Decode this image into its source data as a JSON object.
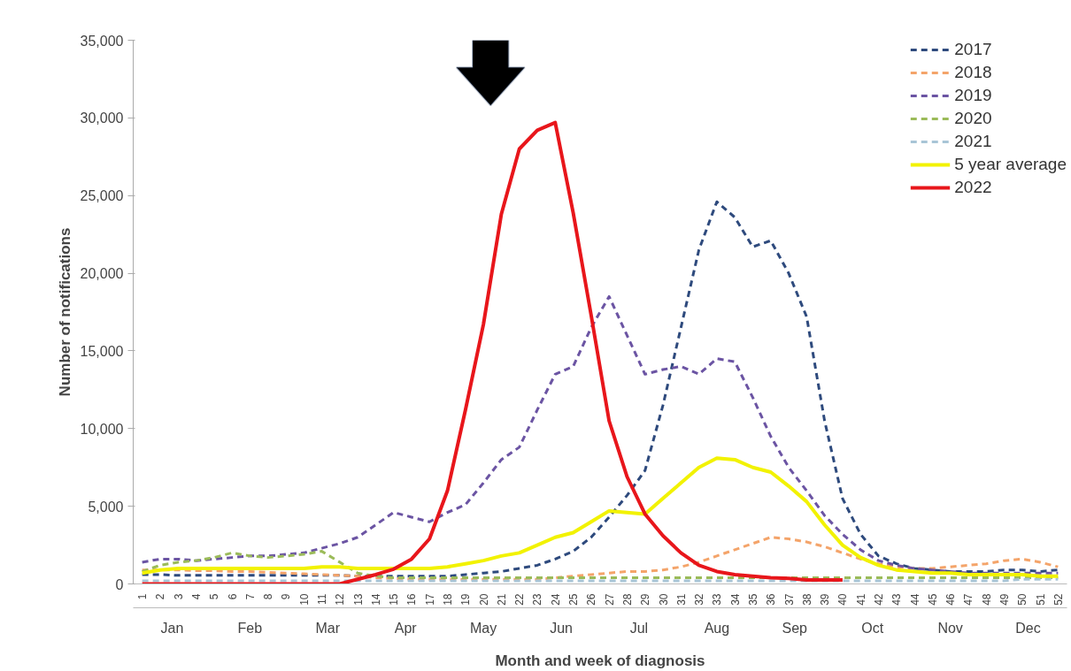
{
  "chart_data": {
    "type": "line",
    "xlabel": "Month and week of diagnosis",
    "ylabel": "Number of notifications",
    "categories": [
      "1",
      "2",
      "3",
      "4",
      "5",
      "6",
      "7",
      "8",
      "9",
      "10",
      "11",
      "12",
      "13",
      "14",
      "15",
      "16",
      "17",
      "18",
      "19",
      "20",
      "21",
      "22",
      "23",
      "24",
      "25",
      "26",
      "27",
      "28",
      "29",
      "30",
      "31",
      "32",
      "33",
      "34",
      "35",
      "36",
      "37",
      "38",
      "39",
      "40",
      "41",
      "42",
      "43",
      "44",
      "45",
      "46",
      "47",
      "48",
      "49",
      "50",
      "51",
      "52"
    ],
    "annotations": [
      "Jan",
      "Feb",
      "Mar",
      "Apr",
      "May",
      "Jun",
      "Jul",
      "Aug",
      "Sep",
      "Oct",
      "Nov",
      "Dec"
    ],
    "ylim": [
      0,
      35000
    ],
    "yticks": [
      {
        "value": 0,
        "label": "0"
      },
      {
        "value": 5000,
        "label": "5,000"
      },
      {
        "value": 10000,
        "label": "10,000"
      },
      {
        "value": 15000,
        "label": "15,000"
      },
      {
        "value": 20000,
        "label": "20,000"
      },
      {
        "value": 25000,
        "label": "25,000"
      },
      {
        "value": 30000,
        "label": "30,000"
      },
      {
        "value": 35000,
        "label": "35,000"
      }
    ],
    "grid": false,
    "legend": "top right",
    "marker": "none",
    "series": [
      {
        "name": "2017",
        "color": "#2e4a7d",
        "line_style": "dashed",
        "values": [
          600,
          600,
          550,
          550,
          550,
          550,
          550,
          550,
          550,
          550,
          550,
          550,
          500,
          500,
          500,
          500,
          500,
          500,
          600,
          700,
          800,
          1000,
          1200,
          1600,
          2100,
          3000,
          4300,
          5700,
          7300,
          11500,
          16500,
          21500,
          24600,
          23600,
          21700,
          22100,
          20000,
          17200,
          10500,
          5500,
          3200,
          1800,
          1300,
          1000,
          900,
          800,
          800,
          800,
          900,
          900,
          800,
          900
        ]
      },
      {
        "name": "2018",
        "color": "#f4a46a",
        "line_style": "dashed",
        "values": [
          900,
          900,
          900,
          850,
          850,
          800,
          800,
          750,
          700,
          650,
          600,
          550,
          500,
          400,
          350,
          300,
          300,
          300,
          300,
          300,
          300,
          300,
          300,
          400,
          500,
          600,
          700,
          800,
          800,
          900,
          1100,
          1400,
          1800,
          2200,
          2600,
          3000,
          2900,
          2700,
          2400,
          2000,
          1600,
          1300,
          1100,
          1000,
          1000,
          1100,
          1200,
          1300,
          1500,
          1600,
          1400,
          1100
        ]
      },
      {
        "name": "2019",
        "color": "#6b54a3",
        "line_style": "dashed",
        "values": [
          1400,
          1600,
          1600,
          1500,
          1600,
          1700,
          1800,
          1800,
          1900,
          2000,
          2300,
          2600,
          3000,
          3800,
          4600,
          4300,
          4000,
          4600,
          5100,
          6500,
          8000,
          8800,
          11200,
          13500,
          14000,
          16500,
          18500,
          16000,
          13500,
          13800,
          14000,
          13500,
          14500,
          14300,
          12000,
          9500,
          7500,
          6000,
          4400,
          3200,
          2200,
          1500,
          1200,
          1000,
          900,
          800,
          700,
          700,
          700,
          700,
          700,
          700
        ]
      },
      {
        "name": "2020",
        "color": "#9bbb59",
        "line_style": "dashed",
        "values": [
          800,
          1200,
          1400,
          1500,
          1700,
          2000,
          1800,
          1700,
          1800,
          1900,
          2100,
          1400,
          700,
          500,
          400,
          400,
          400,
          400,
          400,
          400,
          400,
          400,
          400,
          400,
          400,
          400,
          400,
          400,
          400,
          400,
          400,
          400,
          400,
          400,
          400,
          400,
          400,
          400,
          400,
          400,
          400,
          400,
          400,
          400,
          400,
          400,
          400,
          400,
          400,
          400,
          400,
          400
        ]
      },
      {
        "name": "2021",
        "color": "#a8c5d6",
        "line_style": "dashed",
        "values": [
          200,
          200,
          200,
          200,
          200,
          200,
          200,
          200,
          200,
          200,
          200,
          200,
          200,
          200,
          200,
          200,
          200,
          200,
          200,
          200,
          200,
          200,
          200,
          200,
          200,
          200,
          200,
          200,
          200,
          200,
          200,
          200,
          200,
          200,
          200,
          200,
          200,
          200,
          200,
          200,
          200,
          200,
          200,
          200,
          200,
          200,
          200,
          200,
          200,
          300,
          300,
          300
        ]
      },
      {
        "name": "5 year average",
        "color": "#f2f200",
        "line_style": "solid",
        "values": [
          700,
          900,
          1000,
          1000,
          1000,
          1000,
          1000,
          1000,
          1000,
          1000,
          1100,
          1100,
          1000,
          1000,
          1000,
          1000,
          1000,
          1100,
          1300,
          1500,
          1800,
          2000,
          2500,
          3000,
          3300,
          4000,
          4700,
          4600,
          4500,
          5500,
          6500,
          7500,
          8100,
          8000,
          7500,
          7200,
          6300,
          5300,
          3800,
          2500,
          1700,
          1200,
          900,
          800,
          700,
          700,
          600,
          600,
          600,
          600,
          500,
          500
        ]
      },
      {
        "name": "2022",
        "color": "#e8161b",
        "line_style": "solid",
        "values": [
          0,
          0,
          0,
          0,
          0,
          0,
          0,
          0,
          0,
          0,
          0,
          0,
          300,
          600,
          950,
          1600,
          2900,
          6000,
          11200,
          16700,
          23800,
          28000,
          29200,
          29700,
          23900,
          17300,
          10500,
          6900,
          4500,
          3100,
          2000,
          1200,
          800,
          600,
          500,
          400,
          350,
          250,
          250,
          250,
          null,
          null,
          null,
          null,
          null,
          null,
          null,
          null,
          null,
          null,
          null,
          null
        ]
      }
    ]
  }
}
